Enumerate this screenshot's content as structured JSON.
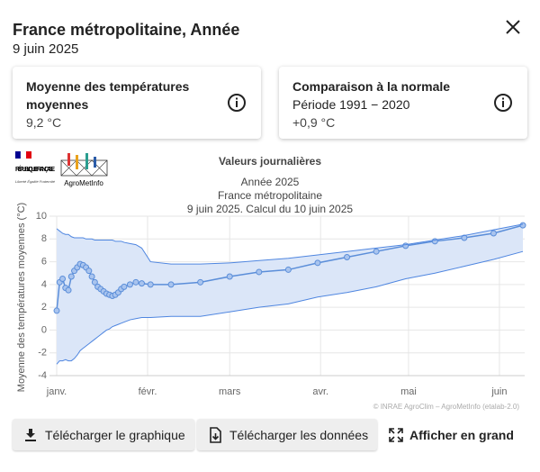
{
  "header": {
    "title": "France métropolitaine, Année",
    "date": "9 juin 2025"
  },
  "cards": [
    {
      "title": "Moyenne des températures moyennes",
      "value": "9,2 °C"
    },
    {
      "title": "Comparaison à la normale",
      "period": "Période 1991 − 2020",
      "value": "+0,9 °C"
    }
  ],
  "logos": {
    "republique": "RÉPUBLIQUE FRANÇAISE",
    "devise": "Liberté Égalité Fraternité",
    "agrometinfo": "AgroMetInfo"
  },
  "chart_data": {
    "type": "line",
    "title": "Valeurs journalières",
    "subtitle": [
      "Année 2025",
      "France métropolitaine",
      "9 juin 2025. Calcul du 10 juin 2025"
    ],
    "y_label": "Moyenne des températures moyennes (°C)",
    "credit": "© INRAE AgroClim – AgroMetInfo (etalab-2.0)",
    "x": [
      1,
      2,
      3,
      4,
      5,
      6,
      7,
      8,
      9,
      10,
      11,
      12,
      13,
      14,
      15,
      16,
      17,
      18,
      19,
      20,
      21,
      22,
      23,
      24,
      26,
      28,
      30,
      33,
      40,
      50,
      60,
      70,
      80,
      90,
      100,
      110,
      120,
      130,
      140,
      150,
      160
    ],
    "series": [
      {
        "color": "#5b8ed9",
        "values": [
          1.7,
          4.2,
          4.5,
          3.7,
          3.5,
          4.7,
          5.2,
          5.5,
          5.8,
          5.7,
          5.5,
          5.2,
          4.7,
          4.2,
          3.8,
          3.6,
          3.4,
          3.2,
          3.1,
          3.0,
          3.1,
          3.3,
          3.6,
          3.8,
          4.0,
          4.2,
          4.1,
          4.0,
          4.0,
          4.2,
          4.7,
          5.1,
          5.3,
          5.9,
          6.4,
          6.9,
          7.4,
          7.8,
          8.1,
          8.5,
          9.2
        ]
      },
      {
        "color": "#4f86e0",
        "values": [
          8.9,
          8.7,
          8.5,
          8.4,
          8.4,
          8.2,
          8.1,
          8.1,
          8.1,
          8.1,
          8.0,
          8.0,
          8.0,
          7.9,
          7.9,
          7.9,
          7.9,
          7.9,
          7.9,
          7.9,
          7.8,
          7.8,
          7.8,
          7.7,
          7.6,
          7.5,
          7.2,
          6.0,
          5.8,
          5.8,
          5.9,
          6.1,
          6.3,
          6.6,
          6.9,
          7.2,
          7.5,
          7.9,
          8.3,
          8.8,
          9.3
        ]
      },
      {
        "color": "#4f86e0",
        "values": [
          -3.0,
          -2.7,
          -2.7,
          -2.6,
          -2.7,
          -2.7,
          -2.5,
          -2.2,
          -1.8,
          -1.6,
          -1.4,
          -1.2,
          -1.0,
          -0.8,
          -0.6,
          -0.4,
          -0.2,
          0.0,
          0.1,
          0.3,
          0.4,
          0.5,
          0.6,
          0.7,
          0.9,
          1.0,
          1.1,
          1.1,
          1.2,
          1.2,
          1.6,
          2.0,
          2.3,
          2.9,
          3.3,
          3.8,
          4.5,
          5.0,
          5.6,
          6.2,
          6.9
        ]
      }
    ],
    "band_color": "#dbe6f8",
    "xlim": [
      1,
      160
    ],
    "xticks": [
      {
        "value": 1,
        "label": "janv."
      },
      {
        "value": 32,
        "label": "févr."
      },
      {
        "value": 60,
        "label": "mars"
      },
      {
        "value": 91,
        "label": "avr."
      },
      {
        "value": 121,
        "label": "mai"
      },
      {
        "value": 152,
        "label": "juin"
      }
    ],
    "ylim": [
      -4,
      10
    ],
    "yticks": [
      -4,
      -2,
      0,
      2,
      4,
      6,
      8,
      10
    ],
    "grid": true
  },
  "buttons": [
    "Télécharger le graphique",
    "Télécharger les données",
    "Afficher en grand"
  ]
}
